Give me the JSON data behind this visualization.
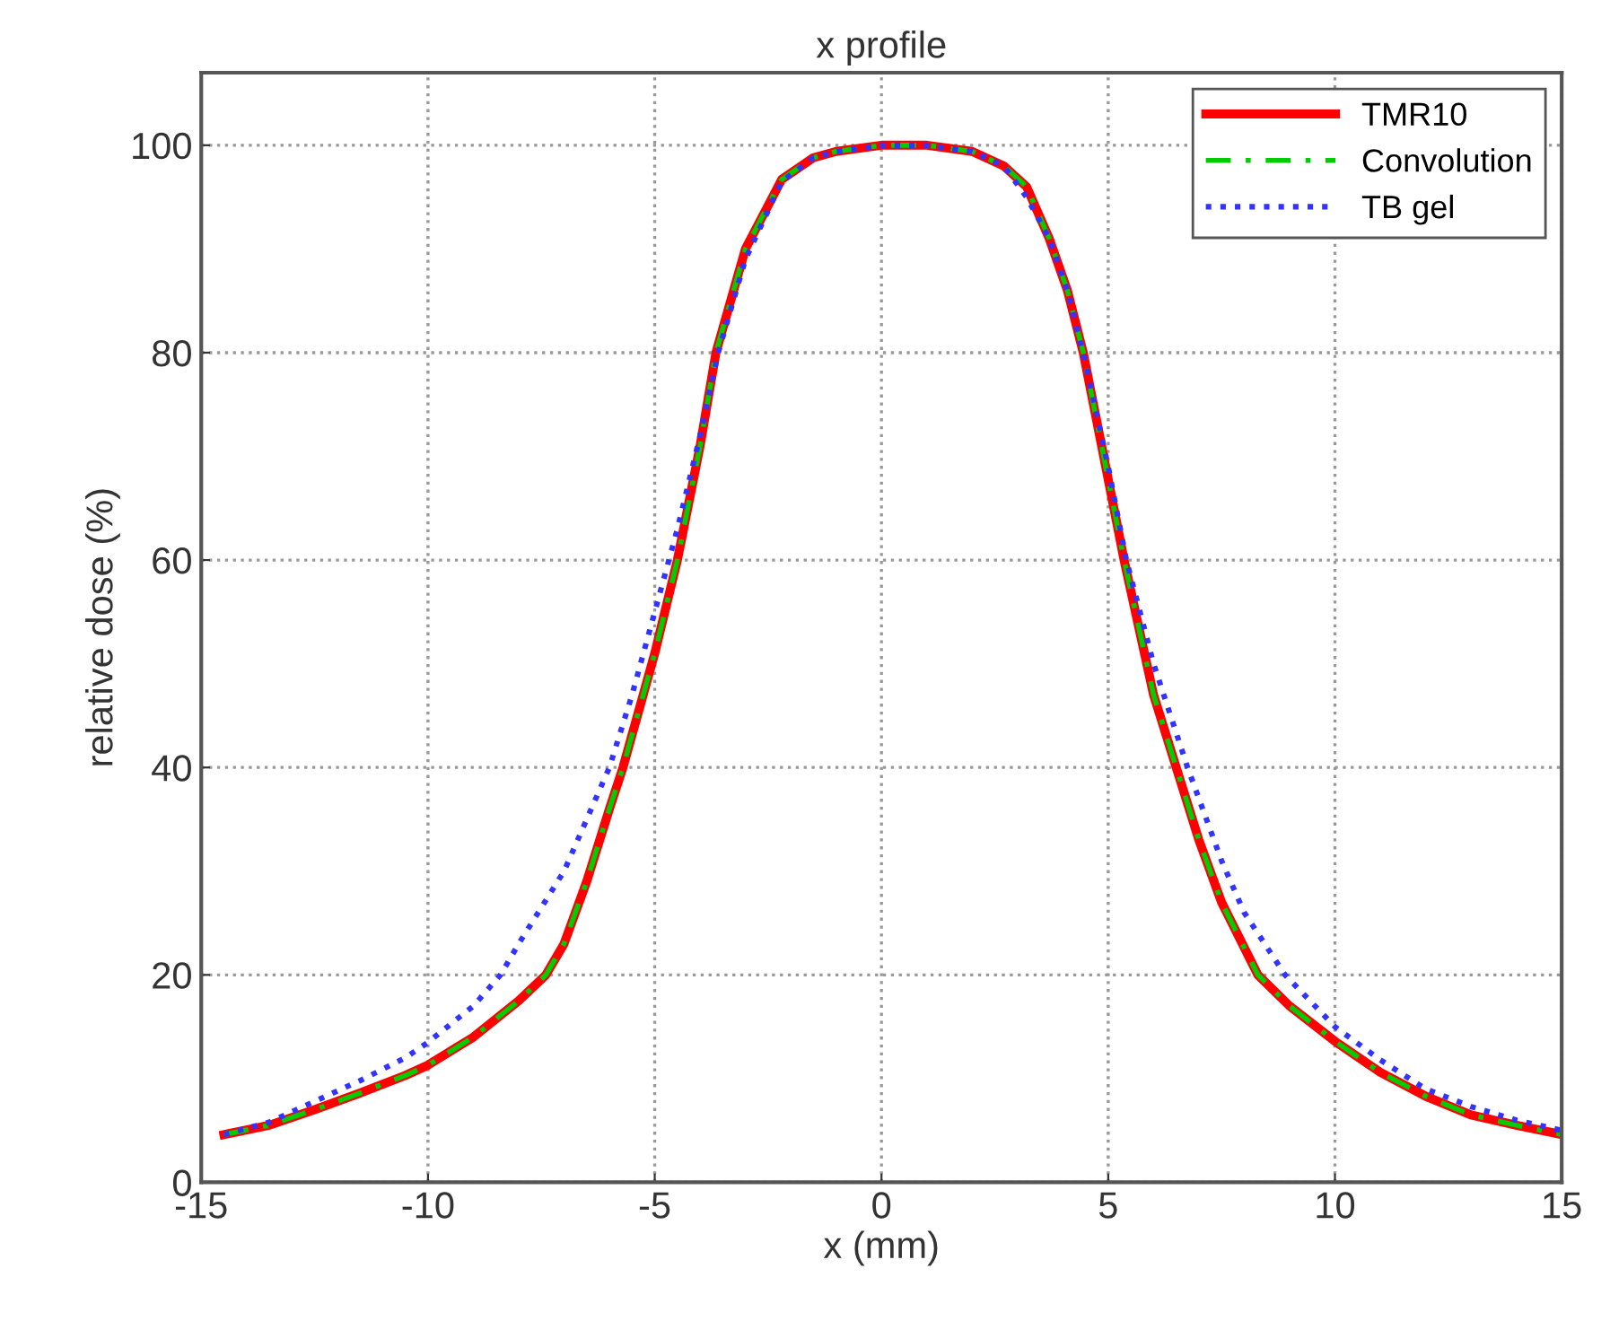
{
  "chart_data": {
    "type": "line",
    "title": "x profile",
    "xlabel": "x (mm)",
    "ylabel": "relative dose (%)",
    "xlim": [
      -15,
      15
    ],
    "ylim": [
      0,
      107
    ],
    "xticks": [
      -15,
      -10,
      -5,
      0,
      5,
      10,
      15
    ],
    "yticks": [
      0,
      20,
      40,
      60,
      80,
      100
    ],
    "grid": true,
    "legend": "top right",
    "series": [
      {
        "name": "TMR10",
        "color": "#ff0000",
        "line_style": "solid",
        "x": [
          -14.5,
          -13.5,
          -12.5,
          -11.5,
          -10.5,
          -10,
          -9,
          -8,
          -7.4,
          -7,
          -6.5,
          -6,
          -5.7,
          -5,
          -4.5,
          -4,
          -3.65,
          -3,
          -2.2,
          -1.5,
          -1,
          0,
          1,
          2,
          2.7,
          3.2,
          3.7,
          4.1,
          4.45,
          4.9,
          5.35,
          6,
          6.5,
          7,
          7.5,
          8.3,
          9,
          10,
          11,
          12,
          13,
          14,
          15
        ],
        "values": [
          4.6,
          5.5,
          7,
          8.6,
          10.3,
          11.3,
          14,
          17.5,
          20,
          23,
          29,
          36,
          40,
          51,
          60,
          71,
          80,
          90,
          96.7,
          98.8,
          99.4,
          100,
          100,
          99.4,
          98,
          96,
          91,
          86,
          80,
          70,
          60,
          47,
          40,
          33,
          27,
          20,
          17,
          13.6,
          10.6,
          8.3,
          6.5,
          5.5,
          4.6
        ]
      },
      {
        "name": "Convolution",
        "color": "#00cc00",
        "line_style": "dashdot",
        "x": [
          -14.5,
          -13.5,
          -12.5,
          -11.5,
          -10.5,
          -10,
          -9,
          -8,
          -7.4,
          -7,
          -6.5,
          -6,
          -5.7,
          -5,
          -4.5,
          -4,
          -3.65,
          -3,
          -2.2,
          -1.5,
          -1,
          0,
          1,
          2,
          2.7,
          3.2,
          3.7,
          4.1,
          4.45,
          4.9,
          5.35,
          6,
          6.5,
          7,
          7.5,
          8.3,
          9,
          10,
          11,
          12,
          13,
          14,
          15
        ],
        "values": [
          4.6,
          5.5,
          7,
          8.6,
          10.3,
          11.3,
          14,
          17.5,
          20,
          23,
          29,
          36,
          40,
          51,
          60,
          71,
          80,
          90,
          96.7,
          98.8,
          99.4,
          100,
          100,
          99.4,
          98,
          96,
          91,
          86,
          80,
          70,
          60,
          47,
          40,
          33,
          27,
          20,
          17,
          13.6,
          10.6,
          8.3,
          6.5,
          5.5,
          4.6
        ]
      },
      {
        "name": "TB gel",
        "color": "#3333ff",
        "line_style": "dotted",
        "x": [
          -14.5,
          -13.5,
          -12.5,
          -11.5,
          -10.5,
          -10,
          -9,
          -8.4,
          -8,
          -7,
          -6.5,
          -6,
          -5.5,
          -5,
          -4.5,
          -4,
          -3.6,
          -3,
          -2.2,
          -1.5,
          -1,
          0,
          1,
          2,
          2.7,
          3.2,
          3.7,
          4.1,
          4.5,
          5,
          5.4,
          6,
          6.75,
          7.5,
          8,
          8.9,
          10,
          11,
          12,
          13,
          14,
          15
        ],
        "values": [
          4.6,
          5.8,
          7.8,
          9.8,
          12,
          13.5,
          17,
          20,
          23,
          30,
          35,
          40,
          47,
          55,
          63,
          72,
          80,
          89,
          96.5,
          98.8,
          99.4,
          100,
          100,
          99.4,
          98,
          95,
          91,
          86,
          79,
          69,
          60,
          50,
          40,
          31,
          26,
          20,
          15,
          11.8,
          9,
          7.3,
          6,
          5
        ]
      }
    ]
  }
}
